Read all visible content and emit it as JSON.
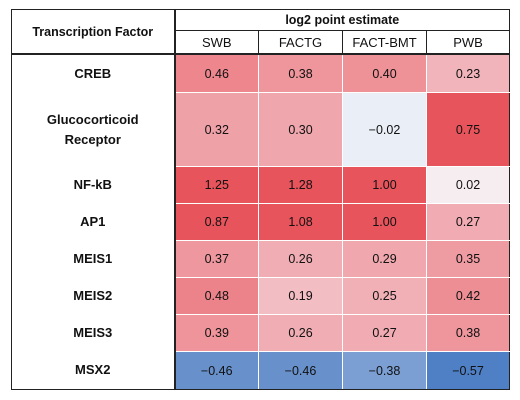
{
  "chart_data": {
    "type": "heatmap",
    "row_header": "Transcription Factor",
    "group_header": "log2 point estimate",
    "columns": [
      "SWB",
      "FACTG",
      "FACT-BMT",
      "PWB"
    ],
    "rows": [
      {
        "label": "CREB",
        "values": [
          "0.46",
          "0.38",
          "0.40",
          "0.23"
        ]
      },
      {
        "label": "Glucocorticoid Receptor",
        "values": [
          "0.32",
          "0.30",
          "−0.02",
          "0.75"
        ]
      },
      {
        "label": "NF-kB",
        "values": [
          "1.25",
          "1.28",
          "1.00",
          "0.02"
        ]
      },
      {
        "label": "AP1",
        "values": [
          "0.87",
          "1.08",
          "1.00",
          "0.27"
        ]
      },
      {
        "label": "MEIS1",
        "values": [
          "0.37",
          "0.26",
          "0.29",
          "0.35"
        ]
      },
      {
        "label": "MEIS2",
        "values": [
          "0.48",
          "0.19",
          "0.25",
          "0.42"
        ]
      },
      {
        "label": "MEIS3",
        "values": [
          "0.39",
          "0.26",
          "0.27",
          "0.38"
        ]
      },
      {
        "label": "MSX2",
        "values": [
          "−0.46",
          "−0.46",
          "−0.38",
          "−0.57"
        ]
      }
    ],
    "color_scale": {
      "positive_color": "#e8545c",
      "neutral_color": "#f7f8fc",
      "negative_color": "#4f7fc4",
      "positive_saturation_at": 0.75,
      "negative_saturation_at": 0.57
    }
  }
}
